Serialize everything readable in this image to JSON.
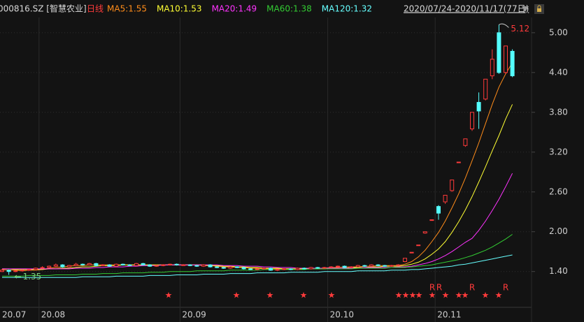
{
  "chart_data": {
    "type": "candlestick",
    "symbol": "000816.SZ [智慧农业]",
    "period": "日线",
    "date_range": "2020/07/24-2020/11/17(77日)",
    "signal_label": "R",
    "high_label": "5.12",
    "low_label": "1.35",
    "month_labels": [
      "20.07",
      "20.08",
      "20.09",
      "20.10",
      "20.11"
    ],
    "up_color": "#ff3b3b",
    "down_color": "#54ffff",
    "grid": true,
    "ylim": [
      0.86,
      5.23
    ],
    "yticks": [
      {
        "value": 5,
        "label": "5.00"
      },
      {
        "value": 4.4,
        "label": "4.40"
      },
      {
        "value": 3.8,
        "label": "3.80"
      },
      {
        "value": 3.2,
        "label": "3.20"
      },
      {
        "value": 2.6,
        "label": "2.60"
      },
      {
        "value": 2,
        "label": "2.00"
      },
      {
        "value": 1.4,
        "label": "1.40"
      }
    ],
    "open": [
      1.4,
      1.42,
      1.4,
      1.41,
      1.42,
      1.43,
      1.45,
      1.46,
      1.48,
      1.5,
      1.47,
      1.49,
      1.51,
      1.5,
      1.52,
      1.49,
      1.5,
      1.48,
      1.51,
      1.5,
      1.49,
      1.52,
      1.5,
      1.48,
      1.49,
      1.5,
      1.51,
      1.5,
      1.5,
      1.49,
      1.48,
      1.5,
      1.47,
      1.46,
      1.45,
      1.47,
      1.46,
      1.44,
      1.43,
      1.44,
      1.45,
      1.42,
      1.43,
      1.44,
      1.43,
      1.45,
      1.44,
      1.46,
      1.45,
      1.46,
      1.47,
      1.48,
      1.46,
      1.47,
      1.49,
      1.48,
      1.5,
      1.49,
      1.48,
      1.49,
      1.55,
      1.69,
      1.8,
      1.98,
      2.18,
      2.38,
      2.45,
      2.62,
      3.05,
      3.3,
      3.55,
      3.95,
      4.0,
      4.35,
      5.0,
      4.4,
      4.72
    ],
    "high": [
      1.44,
      1.43,
      1.42,
      1.43,
      1.44,
      1.46,
      1.48,
      1.49,
      1.52,
      1.51,
      1.5,
      1.53,
      1.52,
      1.53,
      1.53,
      1.51,
      1.51,
      1.52,
      1.52,
      1.51,
      1.53,
      1.53,
      1.51,
      1.5,
      1.51,
      1.52,
      1.52,
      1.51,
      1.51,
      1.5,
      1.51,
      1.51,
      1.48,
      1.47,
      1.48,
      1.48,
      1.47,
      1.45,
      1.45,
      1.46,
      1.46,
      1.44,
      1.45,
      1.45,
      1.46,
      1.46,
      1.47,
      1.47,
      1.47,
      1.48,
      1.49,
      1.49,
      1.48,
      1.5,
      1.5,
      1.51,
      1.51,
      1.5,
      1.5,
      1.51,
      1.6,
      1.69,
      1.8,
      2.0,
      2.18,
      2.4,
      2.55,
      2.78,
      3.05,
      3.4,
      3.8,
      4.1,
      4.3,
      4.75,
      5.12,
      4.8,
      4.75
    ],
    "low": [
      1.39,
      1.35,
      1.39,
      1.4,
      1.41,
      1.42,
      1.44,
      1.45,
      1.47,
      1.46,
      1.46,
      1.48,
      1.49,
      1.49,
      1.48,
      1.48,
      1.47,
      1.47,
      1.49,
      1.48,
      1.48,
      1.49,
      1.47,
      1.47,
      1.48,
      1.49,
      1.49,
      1.49,
      1.48,
      1.47,
      1.47,
      1.46,
      1.45,
      1.44,
      1.44,
      1.45,
      1.43,
      1.42,
      1.42,
      1.43,
      1.41,
      1.41,
      1.42,
      1.42,
      1.42,
      1.43,
      1.43,
      1.44,
      1.44,
      1.45,
      1.46,
      1.45,
      1.45,
      1.46,
      1.47,
      1.47,
      1.48,
      1.47,
      1.47,
      1.48,
      1.54,
      1.69,
      1.8,
      1.97,
      2.18,
      2.18,
      2.42,
      2.6,
      3.05,
      3.28,
      3.52,
      3.55,
      3.98,
      4.3,
      4.38,
      4.38,
      4.33
    ],
    "close": [
      1.42,
      1.4,
      1.41,
      1.42,
      1.43,
      1.45,
      1.46,
      1.48,
      1.5,
      1.47,
      1.49,
      1.51,
      1.5,
      1.52,
      1.49,
      1.5,
      1.48,
      1.51,
      1.5,
      1.49,
      1.52,
      1.5,
      1.48,
      1.49,
      1.5,
      1.51,
      1.5,
      1.5,
      1.49,
      1.48,
      1.5,
      1.47,
      1.46,
      1.45,
      1.47,
      1.46,
      1.44,
      1.43,
      1.44,
      1.45,
      1.42,
      1.43,
      1.44,
      1.43,
      1.45,
      1.44,
      1.46,
      1.45,
      1.46,
      1.47,
      1.48,
      1.46,
      1.47,
      1.49,
      1.48,
      1.5,
      1.49,
      1.48,
      1.49,
      1.5,
      1.6,
      1.69,
      1.8,
      2.0,
      2.18,
      2.28,
      2.55,
      2.78,
      3.05,
      3.4,
      3.8,
      3.82,
      4.3,
      4.6,
      4.4,
      4.8,
      4.35
    ],
    "series": [
      {
        "name": "MA5:1.55",
        "color": "#ff8c1a",
        "values": [
          1.43,
          1.42,
          1.42,
          1.41,
          1.42,
          1.42,
          1.43,
          1.45,
          1.46,
          1.47,
          1.48,
          1.49,
          1.49,
          1.5,
          1.5,
          1.5,
          1.5,
          1.5,
          1.5,
          1.5,
          1.5,
          1.5,
          1.5,
          1.5,
          1.5,
          1.5,
          1.5,
          1.5,
          1.5,
          1.5,
          1.49,
          1.49,
          1.48,
          1.47,
          1.47,
          1.46,
          1.46,
          1.45,
          1.45,
          1.44,
          1.44,
          1.44,
          1.44,
          1.44,
          1.43,
          1.44,
          1.44,
          1.45,
          1.45,
          1.46,
          1.46,
          1.47,
          1.47,
          1.47,
          1.48,
          1.48,
          1.49,
          1.49,
          1.49,
          1.49,
          1.51,
          1.55,
          1.62,
          1.72,
          1.85,
          1.99,
          2.16,
          2.36,
          2.57,
          2.81,
          3.07,
          3.34,
          3.63,
          3.92,
          4.18,
          4.38,
          4.55
        ]
      },
      {
        "name": "MA10:1.53",
        "color": "#ffff33",
        "values": [
          1.44,
          1.44,
          1.43,
          1.43,
          1.43,
          1.43,
          1.43,
          1.44,
          1.44,
          1.45,
          1.45,
          1.46,
          1.47,
          1.47,
          1.48,
          1.49,
          1.49,
          1.49,
          1.5,
          1.5,
          1.5,
          1.5,
          1.5,
          1.5,
          1.5,
          1.5,
          1.5,
          1.5,
          1.5,
          1.5,
          1.5,
          1.49,
          1.49,
          1.48,
          1.48,
          1.47,
          1.47,
          1.46,
          1.46,
          1.45,
          1.45,
          1.45,
          1.44,
          1.44,
          1.44,
          1.44,
          1.44,
          1.44,
          1.44,
          1.45,
          1.45,
          1.45,
          1.46,
          1.46,
          1.46,
          1.47,
          1.47,
          1.48,
          1.48,
          1.48,
          1.49,
          1.51,
          1.54,
          1.59,
          1.66,
          1.74,
          1.85,
          1.99,
          2.15,
          2.33,
          2.53,
          2.75,
          2.98,
          3.22,
          3.45,
          3.7,
          3.92
        ]
      },
      {
        "name": "MA20:1.49",
        "color": "#ff33ff",
        "values": [
          1.44,
          1.44,
          1.44,
          1.44,
          1.44,
          1.44,
          1.44,
          1.44,
          1.44,
          1.44,
          1.44,
          1.45,
          1.45,
          1.45,
          1.46,
          1.46,
          1.47,
          1.47,
          1.47,
          1.48,
          1.48,
          1.49,
          1.49,
          1.49,
          1.5,
          1.5,
          1.5,
          1.5,
          1.5,
          1.5,
          1.5,
          1.5,
          1.5,
          1.49,
          1.49,
          1.49,
          1.48,
          1.48,
          1.48,
          1.47,
          1.47,
          1.46,
          1.46,
          1.46,
          1.45,
          1.45,
          1.45,
          1.45,
          1.45,
          1.45,
          1.45,
          1.45,
          1.45,
          1.45,
          1.46,
          1.46,
          1.46,
          1.46,
          1.46,
          1.47,
          1.47,
          1.48,
          1.5,
          1.52,
          1.55,
          1.59,
          1.64,
          1.7,
          1.77,
          1.84,
          1.9,
          2.02,
          2.16,
          2.32,
          2.49,
          2.68,
          2.88
        ]
      },
      {
        "name": "MA60:1.38",
        "color": "#33cc33",
        "values": [
          1.33,
          1.33,
          1.33,
          1.33,
          1.34,
          1.34,
          1.34,
          1.34,
          1.35,
          1.35,
          1.35,
          1.35,
          1.36,
          1.36,
          1.36,
          1.37,
          1.37,
          1.37,
          1.38,
          1.38,
          1.38,
          1.38,
          1.39,
          1.39,
          1.39,
          1.4,
          1.4,
          1.4,
          1.4,
          1.41,
          1.41,
          1.41,
          1.41,
          1.41,
          1.42,
          1.42,
          1.42,
          1.42,
          1.42,
          1.43,
          1.43,
          1.43,
          1.43,
          1.43,
          1.43,
          1.43,
          1.44,
          1.44,
          1.44,
          1.44,
          1.44,
          1.44,
          1.44,
          1.45,
          1.45,
          1.45,
          1.45,
          1.45,
          1.46,
          1.46,
          1.46,
          1.47,
          1.48,
          1.49,
          1.5,
          1.52,
          1.54,
          1.56,
          1.58,
          1.61,
          1.64,
          1.68,
          1.72,
          1.77,
          1.83,
          1.89,
          1.96
        ]
      },
      {
        "name": "MA120:1.32",
        "color": "#66ffff",
        "values": [
          1.31,
          1.31,
          1.31,
          1.31,
          1.31,
          1.31,
          1.31,
          1.31,
          1.31,
          1.31,
          1.31,
          1.31,
          1.32,
          1.32,
          1.32,
          1.32,
          1.32,
          1.33,
          1.33,
          1.33,
          1.33,
          1.33,
          1.34,
          1.34,
          1.34,
          1.34,
          1.35,
          1.35,
          1.35,
          1.35,
          1.36,
          1.36,
          1.36,
          1.36,
          1.37,
          1.37,
          1.37,
          1.37,
          1.38,
          1.38,
          1.38,
          1.38,
          1.38,
          1.39,
          1.39,
          1.39,
          1.39,
          1.39,
          1.4,
          1.4,
          1.4,
          1.4,
          1.4,
          1.41,
          1.41,
          1.41,
          1.41,
          1.41,
          1.42,
          1.42,
          1.42,
          1.43,
          1.43,
          1.44,
          1.45,
          1.46,
          1.47,
          1.48,
          1.5,
          1.51,
          1.53,
          1.55,
          1.57,
          1.59,
          1.61,
          1.63,
          1.65
        ]
      }
    ]
  }
}
